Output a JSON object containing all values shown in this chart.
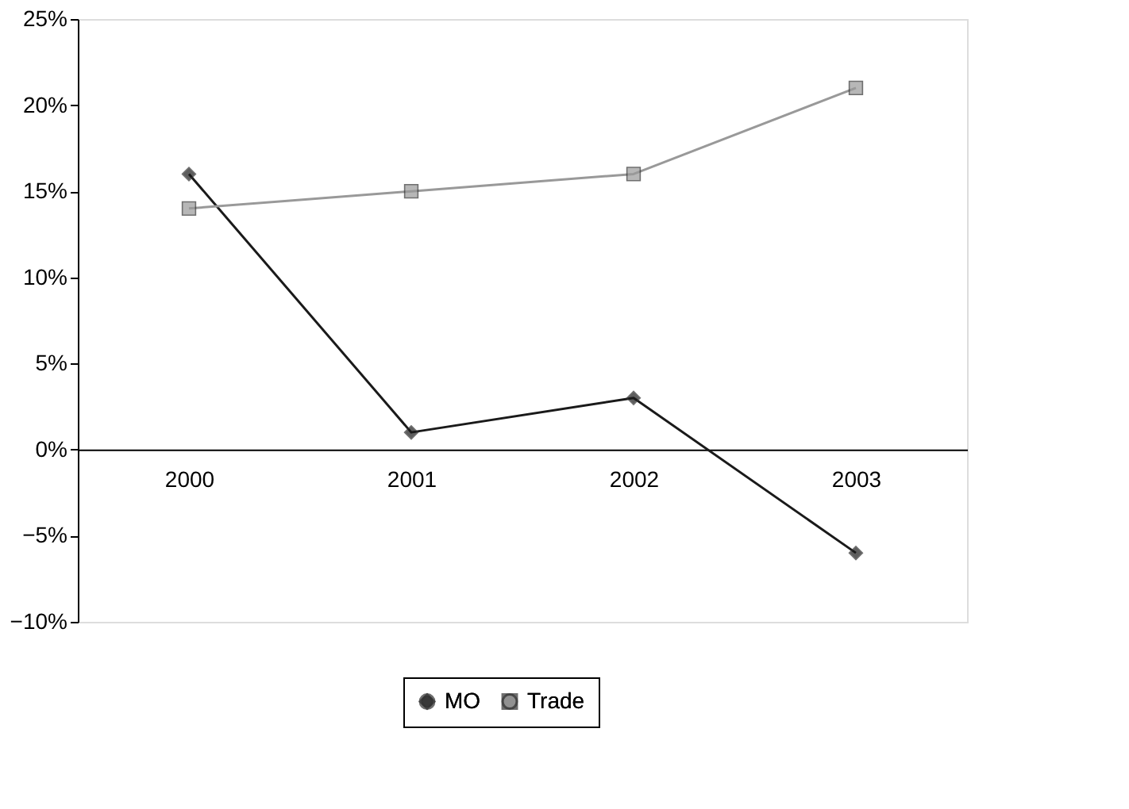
{
  "chart_data": {
    "type": "line",
    "categories": [
      "2000",
      "2001",
      "2002",
      "2003"
    ],
    "series": [
      {
        "name": "MO",
        "color": "#1a1a1a",
        "marker": "diamond",
        "values": [
          16,
          1,
          3,
          -6
        ]
      },
      {
        "name": "Trade",
        "color": "#999999",
        "marker": "square",
        "values": [
          14,
          15,
          16,
          21
        ]
      }
    ],
    "ylim": [
      -10,
      25
    ],
    "yticks": [
      {
        "value": -10,
        "label": "−10%"
      },
      {
        "value": -5,
        "label": "−5%"
      },
      {
        "value": 0,
        "label": "0%"
      },
      {
        "value": 5,
        "label": "5%"
      },
      {
        "value": 10,
        "label": "10%"
      },
      {
        "value": 15,
        "label": "15%"
      },
      {
        "value": 20,
        "label": "20%"
      },
      {
        "value": 25,
        "label": "25%"
      }
    ],
    "grid": false,
    "legend": "bottom",
    "line_style": "solid"
  }
}
